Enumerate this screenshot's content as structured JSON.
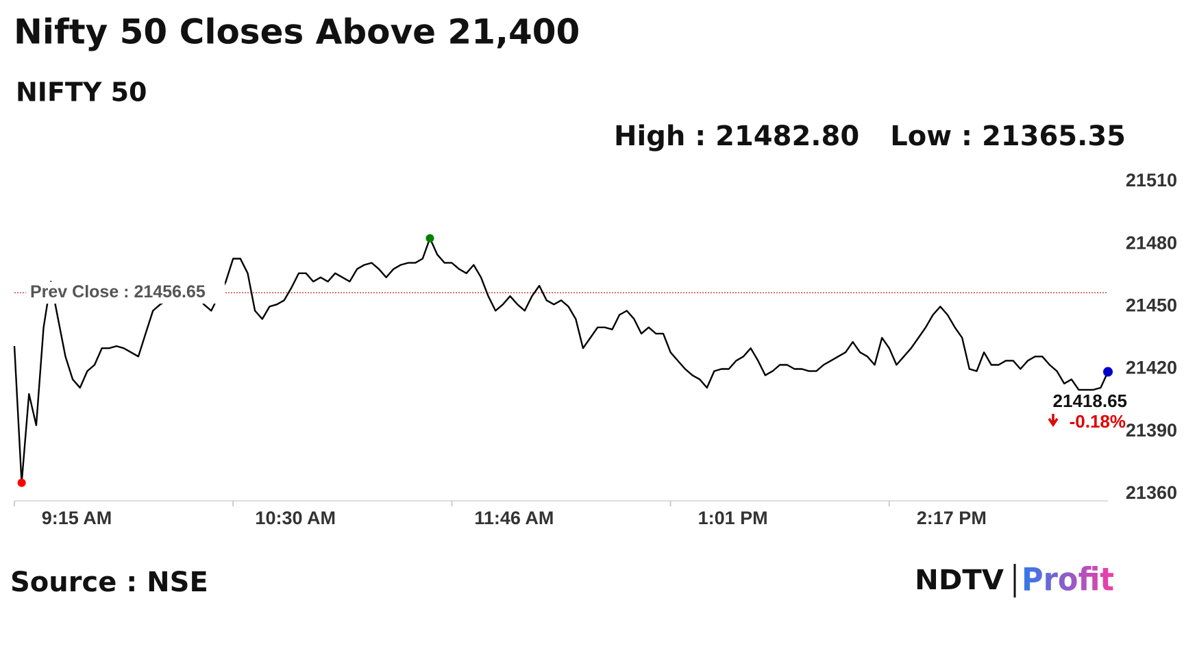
{
  "chart_data": {
    "type": "line",
    "title": "Nifty 50 Closes Above 21,400",
    "subtitle": "NIFTY 50",
    "high_text": "High : 21482.80",
    "low_text": "Low : 21365.35",
    "source": "Source : NSE",
    "logo": [
      "NDTV",
      "Profit"
    ],
    "color": "#000000",
    "low_color": "#ff0000",
    "high_color": "#008000",
    "close_color": "#0000cc",
    "prev_close": {
      "value": 21456.65,
      "label": "Prev Close : 21456.65",
      "color": "#cc0000"
    },
    "close": {
      "label": "21418.65",
      "change": "-0.18%",
      "change_color": "#e00000"
    },
    "ylim": [
      21356,
      21512
    ],
    "yticks": [
      21360,
      21390,
      21420,
      21450,
      21480,
      21510
    ],
    "categories": [
      "9:15 AM",
      null,
      null,
      null,
      null,
      null,
      null,
      null,
      null,
      null,
      null,
      null,
      null,
      null,
      null,
      null,
      null,
      null,
      null,
      null,
      null,
      null,
      null,
      null,
      null,
      null,
      null,
      null,
      null,
      null,
      "10:30 AM",
      null,
      null,
      null,
      null,
      null,
      null,
      null,
      null,
      null,
      null,
      null,
      null,
      null,
      null,
      null,
      null,
      null,
      null,
      null,
      null,
      null,
      null,
      null,
      null,
      null,
      null,
      null,
      null,
      null,
      "11:46 AM",
      null,
      null,
      null,
      null,
      null,
      null,
      null,
      null,
      null,
      null,
      null,
      null,
      null,
      null,
      null,
      null,
      null,
      null,
      null,
      null,
      null,
      null,
      null,
      null,
      null,
      null,
      null,
      null,
      null,
      "1:01 PM",
      null,
      null,
      null,
      null,
      null,
      null,
      null,
      null,
      null,
      null,
      null,
      null,
      null,
      null,
      null,
      null,
      null,
      null,
      null,
      null,
      null,
      null,
      null,
      null,
      null,
      null,
      null,
      null,
      null,
      "2:17 PM",
      null,
      null,
      null,
      null,
      null,
      null,
      null,
      null,
      null,
      null,
      null,
      null,
      null,
      null,
      null,
      null,
      null,
      null,
      null,
      null,
      null,
      null,
      null,
      null,
      null,
      null,
      null,
      null,
      null,
      null
    ],
    "values": [
      21431,
      21365.35,
      21408,
      21393,
      21440,
      21462,
      21444,
      21426,
      21415,
      21411,
      21419,
      21422,
      21430,
      21430,
      21431,
      21430,
      21428,
      21426,
      21437,
      21448,
      21451,
      21453,
      21459,
      21457,
      21460,
      21455,
      21451,
      21448,
      21455,
      21462,
      21473,
      21473,
      21466,
      21448,
      21444,
      21450,
      21451,
      21453,
      21459,
      21466,
      21466,
      21462,
      21464,
      21462,
      21466,
      21464,
      21462,
      21468,
      21470,
      21471,
      21468,
      21464,
      21468,
      21470,
      21471,
      21471,
      21473,
      21482.8,
      21475,
      21471,
      21471,
      21468,
      21466,
      21470,
      21464,
      21455,
      21448,
      21451,
      21455,
      21451,
      21448,
      21455,
      21460,
      21453,
      21451,
      21453,
      21450,
      21444,
      21430,
      21435,
      21440,
      21440,
      21439,
      21446,
      21448,
      21444,
      21437,
      21440,
      21437,
      21437,
      21428,
      21424,
      21420,
      21417,
      21415,
      21411,
      21419,
      21420,
      21420,
      21424,
      21426,
      21430,
      21424,
      21417,
      21419,
      21422,
      21422,
      21420,
      21420,
      21419,
      21419,
      21422,
      21424,
      21426,
      21428,
      21433,
      21428,
      21426,
      21422,
      21435,
      21430,
      21422,
      21426,
      21430,
      21435,
      21440,
      21446,
      21450,
      21446,
      21440,
      21435,
      21420,
      21419,
      21428,
      21422,
      21422,
      21424,
      21424,
      21420,
      21424,
      21426,
      21426,
      21422,
      21419,
      21413,
      21415,
      21410,
      21410,
      21410,
      21411,
      21418.65
    ]
  }
}
